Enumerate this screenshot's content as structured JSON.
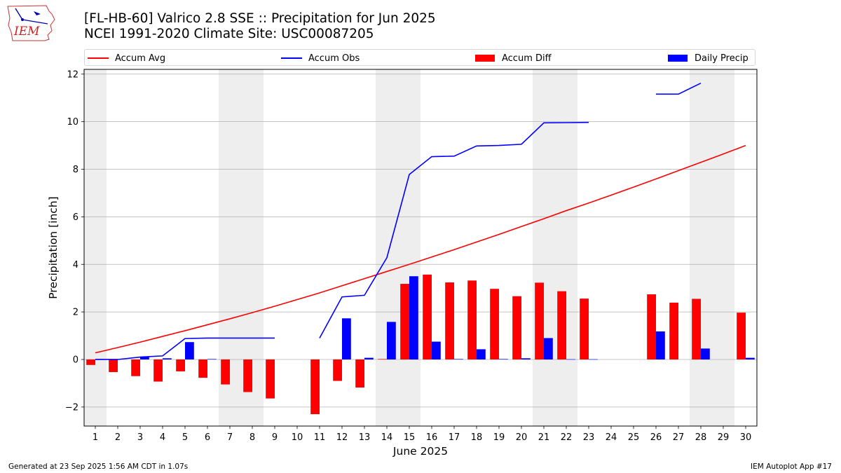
{
  "header": {
    "title_line1": "[FL-HB-60] Valrico 2.8 SSE :: Precipitation for Jun 2025",
    "title_line2": "NCEI 1991-2020 Climate Site: USC00087205"
  },
  "logo": {
    "text": "IEM"
  },
  "footer": {
    "left": "Generated at 23 Sep 2025 1:56 AM CDT in 1.07s",
    "right": "IEM Autoplot App #17"
  },
  "colors": {
    "avg": "#ff0000",
    "obs": "#0000ff",
    "diff": "#ff0000",
    "daily": "#0000ff",
    "weekend": "#eeeeee",
    "grid": "#b0b0b0"
  },
  "chart_data": {
    "type": "bar",
    "xlabel": "June 2025",
    "ylabel": "Precipitation [inch]",
    "ylim": [
      -2.8,
      12.2
    ],
    "yticks": [
      -2,
      0,
      2,
      4,
      6,
      8,
      10,
      12
    ],
    "ytick_labels": [
      "−2",
      "0",
      "2",
      "4",
      "6",
      "8",
      "10",
      "12"
    ],
    "grid": "horizontal",
    "legend_position": "top",
    "legend": [
      "Accum Avg",
      "Accum Obs",
      "Accum Diff",
      "Daily Precip"
    ],
    "x": [
      1,
      2,
      3,
      4,
      5,
      6,
      7,
      8,
      9,
      10,
      11,
      12,
      13,
      14,
      15,
      16,
      17,
      18,
      19,
      20,
      21,
      22,
      23,
      24,
      25,
      26,
      27,
      28,
      29,
      30
    ],
    "weekends": [
      [
        1,
        1
      ],
      [
        7,
        8
      ],
      [
        14,
        15
      ],
      [
        21,
        22
      ],
      [
        28,
        29
      ]
    ],
    "series": [
      {
        "name": "Accum Avg",
        "kind": "line",
        "values": [
          0.28,
          0.5,
          0.73,
          0.97,
          1.21,
          1.46,
          1.71,
          1.97,
          2.24,
          2.52,
          2.8,
          3.1,
          3.4,
          3.7,
          4.0,
          4.31,
          4.62,
          4.94,
          5.26,
          5.59,
          5.92,
          6.26,
          6.58,
          6.91,
          7.25,
          7.59,
          7.94,
          8.29,
          8.64,
          9.0
        ]
      },
      {
        "name": "Accum Obs",
        "kind": "line",
        "values": [
          0.0,
          0.0,
          0.1,
          0.15,
          0.88,
          0.9,
          0.9,
          0.9,
          0.9,
          null,
          0.9,
          2.63,
          2.7,
          4.28,
          7.78,
          8.53,
          8.55,
          8.98,
          9.0,
          9.05,
          9.95,
          9.96,
          9.97,
          null,
          null,
          11.16,
          11.16,
          11.62,
          null,
          null
        ]
      },
      {
        "name": "Accum Diff",
        "kind": "bar",
        "values": [
          -0.23,
          -0.53,
          -0.7,
          -0.93,
          -0.5,
          -0.77,
          -1.05,
          -1.37,
          -1.64,
          null,
          -2.3,
          -0.9,
          -1.18,
          0.02,
          3.18,
          3.57,
          3.24,
          3.32,
          2.97,
          2.66,
          3.23,
          2.87,
          2.56,
          null,
          null,
          2.74,
          2.39,
          2.55,
          null,
          1.97
        ]
      },
      {
        "name": "Daily Precip",
        "kind": "bar",
        "values": [
          0.02,
          0.0,
          0.12,
          0.05,
          0.73,
          0.02,
          0.0,
          0.0,
          0.0,
          null,
          0.0,
          1.73,
          0.07,
          1.58,
          3.5,
          0.75,
          0.02,
          0.43,
          0.02,
          0.05,
          0.9,
          0.01,
          0.01,
          null,
          null,
          1.18,
          0.0,
          0.46,
          null,
          0.07
        ]
      }
    ]
  }
}
